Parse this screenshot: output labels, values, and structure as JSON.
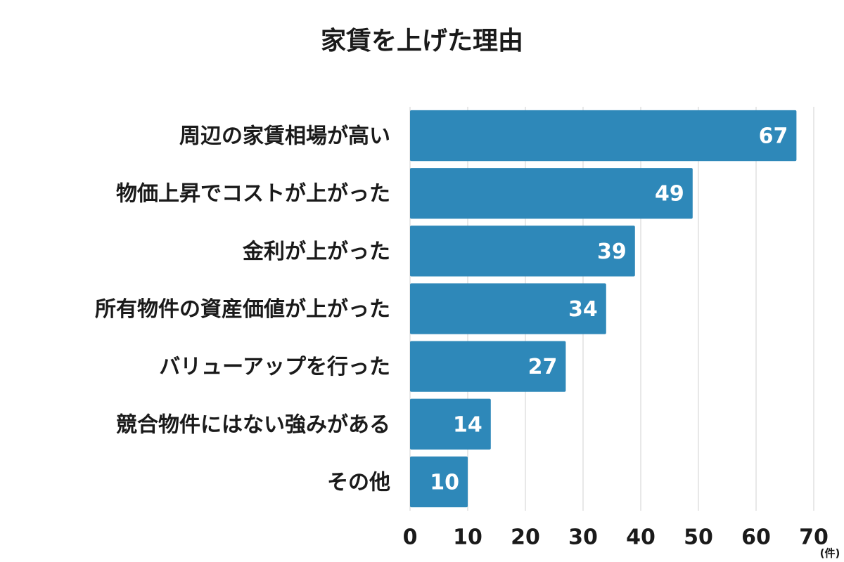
{
  "chart_data": {
    "type": "bar",
    "orientation": "horizontal",
    "title": "家賃を上げた理由",
    "categories": [
      "周辺の家賃相場が高い",
      "物価上昇でコストが上がった",
      "金利が上がった",
      "所有物件の資産価値が上がった",
      "バリューアップを行った",
      "競合物件にはない強みがある",
      "その他"
    ],
    "values": [
      67,
      49,
      39,
      34,
      27,
      14,
      10
    ],
    "color": "#2e88b9",
    "xlim": [
      0,
      70
    ],
    "xticks": [
      0,
      10,
      20,
      30,
      40,
      50,
      60,
      70
    ],
    "x_unit": "(件)",
    "grid": true
  }
}
